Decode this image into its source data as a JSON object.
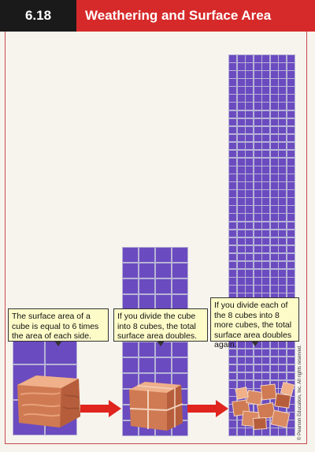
{
  "header": {
    "number": "6.18",
    "title": "Weathering and Surface Area"
  },
  "callouts": [
    {
      "text": "The surface area of a cube is equal to 6 times the area of each side."
    },
    {
      "text": "If you divide the cube into 8 cubes, the total surface area doubles."
    },
    {
      "text": "If you divide each of the 8 cubes into 8 more cubes, the total surface area doubles again."
    }
  ],
  "copyright": "© Pearson Education, Inc. All rights reserved.",
  "colors": {
    "header_red": "#d62a2a",
    "number_box": "#1a1a1a",
    "grid_purple": "#6b4bc0",
    "callout_yellow": "#fdfbc8",
    "arrow_red": "#e0251f",
    "rock": "#d98a62"
  },
  "icons": [
    "large-rock-cube-icon",
    "eight-rock-cubes-icon",
    "many-rock-cubes-icon",
    "right-arrow-icon"
  ]
}
